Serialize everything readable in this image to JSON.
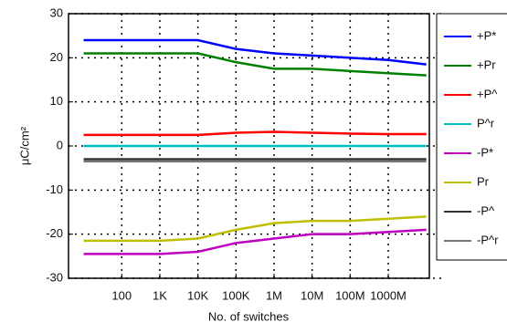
{
  "chart_data": {
    "type": "line",
    "ylabel": "μC/cm²",
    "xlabel": "No. of switches",
    "x": [
      10,
      100,
      1000,
      10000,
      100000,
      1000000,
      10000000,
      100000000,
      1000000000,
      10000000000
    ],
    "xlim": [
      4,
      12000000000
    ],
    "xticks": [
      {
        "value": 100,
        "label": "100"
      },
      {
        "value": 1000,
        "label": "1K"
      },
      {
        "value": 10000,
        "label": "10K"
      },
      {
        "value": 100000,
        "label": "100K"
      },
      {
        "value": 1000000,
        "label": "1M"
      },
      {
        "value": 10000000,
        "label": "10M"
      },
      {
        "value": 100000000,
        "label": "100M"
      },
      {
        "value": 1000000000,
        "label": "1000M"
      }
    ],
    "xscale": "log",
    "ylim": [
      -30,
      30
    ],
    "yticks": [
      30,
      20,
      10,
      0,
      -10,
      -20,
      -30
    ],
    "grid": true,
    "legend": "right",
    "series": [
      {
        "name": "+P*",
        "color": "#0000ff",
        "values": [
          24,
          24,
          24,
          24,
          22,
          21,
          20.5,
          20,
          19.5,
          18.5
        ]
      },
      {
        "name": "+Pr",
        "color": "#008000",
        "values": [
          21,
          21,
          21,
          21,
          19,
          17.5,
          17.5,
          17,
          16.5,
          16
        ]
      },
      {
        "name": "+P^",
        "color": "#ff0000",
        "values": [
          2.5,
          2.5,
          2.5,
          2.5,
          3,
          3.2,
          3,
          2.8,
          2.7,
          2.7
        ]
      },
      {
        "name": "P^r",
        "color": "#00bfbf",
        "values": [
          0,
          0,
          0,
          0,
          0,
          0,
          0,
          0,
          0,
          0
        ]
      },
      {
        "name": "-P*",
        "color": "#bf00bf",
        "values": [
          -24.5,
          -24.5,
          -24.5,
          -24,
          -22,
          -21,
          -20,
          -20,
          -19.5,
          -19
        ]
      },
      {
        "name": "Pr",
        "color": "#bfbf00",
        "values": [
          -21.5,
          -21.5,
          -21.5,
          -21,
          -19,
          -17.5,
          -17,
          -17,
          -16.5,
          -16
        ]
      },
      {
        "name": "-P^",
        "color": "#333333",
        "values": [
          -3,
          -3,
          -3,
          -3,
          -3,
          -3,
          -3,
          -3,
          -3,
          -3
        ]
      },
      {
        "name": "-P^r",
        "color": "#777777",
        "values": [
          -3.5,
          -3.5,
          -3.5,
          -3.5,
          -3.5,
          -3.5,
          -3.5,
          -3.5,
          -3.5,
          -3.5
        ]
      }
    ]
  }
}
